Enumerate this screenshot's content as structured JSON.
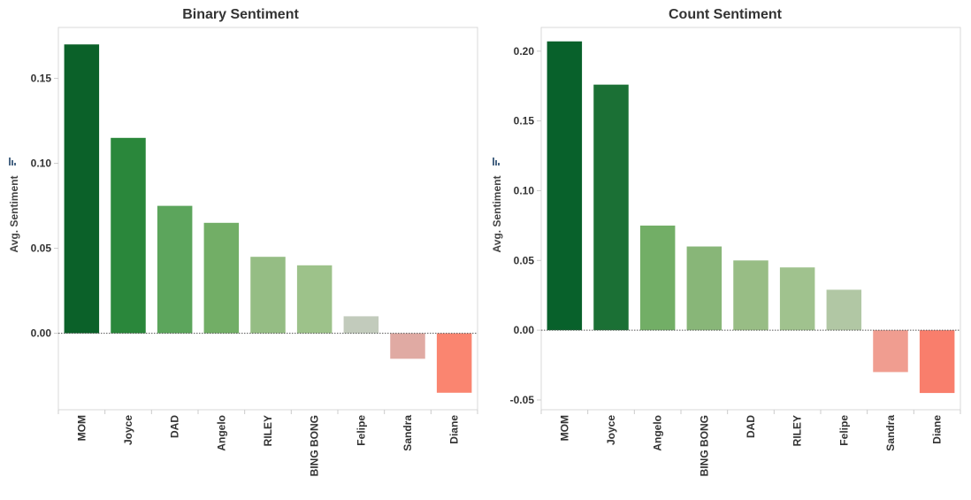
{
  "chart_data": [
    {
      "type": "bar",
      "title": "Binary Sentiment",
      "ylabel": "Avg. Sentiment",
      "xlabel": "",
      "categories": [
        "MOM",
        "Joyce",
        "DAD",
        "Angelo",
        "RILEY",
        "BING BONG",
        "Felipe",
        "Sandra",
        "Diane"
      ],
      "values": [
        0.17,
        0.115,
        0.075,
        0.065,
        0.045,
        0.04,
        0.01,
        -0.015,
        -0.035
      ],
      "colors": [
        "#0b6129",
        "#2a873b",
        "#5ca55c",
        "#72ae66",
        "#95bd84",
        "#9dc28a",
        "#c2cbbc",
        "#e0aaa3",
        "#fa8570"
      ],
      "yticks": [
        "0.00",
        "0.05",
        "0.10",
        "0.15"
      ],
      "ytick_values": [
        0.0,
        0.05,
        0.1,
        0.15
      ],
      "ylim": [
        -0.045,
        0.18
      ],
      "grid": false,
      "legend": "none"
    },
    {
      "type": "bar",
      "title": "Count Sentiment",
      "ylabel": "Avg. Sentiment",
      "xlabel": "",
      "categories": [
        "MOM",
        "Joyce",
        "Angelo",
        "BING BONG",
        "DAD",
        "RILEY",
        "Felipe",
        "Sandra",
        "Diane"
      ],
      "values": [
        0.207,
        0.176,
        0.075,
        0.06,
        0.05,
        0.045,
        0.029,
        -0.03,
        -0.045
      ],
      "colors": [
        "#08612b",
        "#1b7035",
        "#72ae66",
        "#88b678",
        "#98bd85",
        "#a0c28e",
        "#b1c7a4",
        "#f09d90",
        "#f97e6c"
      ],
      "yticks": [
        "-0.05",
        "0.00",
        "0.05",
        "0.10",
        "0.15",
        "0.20"
      ],
      "ytick_values": [
        -0.05,
        0.0,
        0.05,
        0.1,
        0.15,
        0.2
      ],
      "ylim": [
        -0.057,
        0.217
      ],
      "grid": false,
      "legend": "none"
    }
  ]
}
